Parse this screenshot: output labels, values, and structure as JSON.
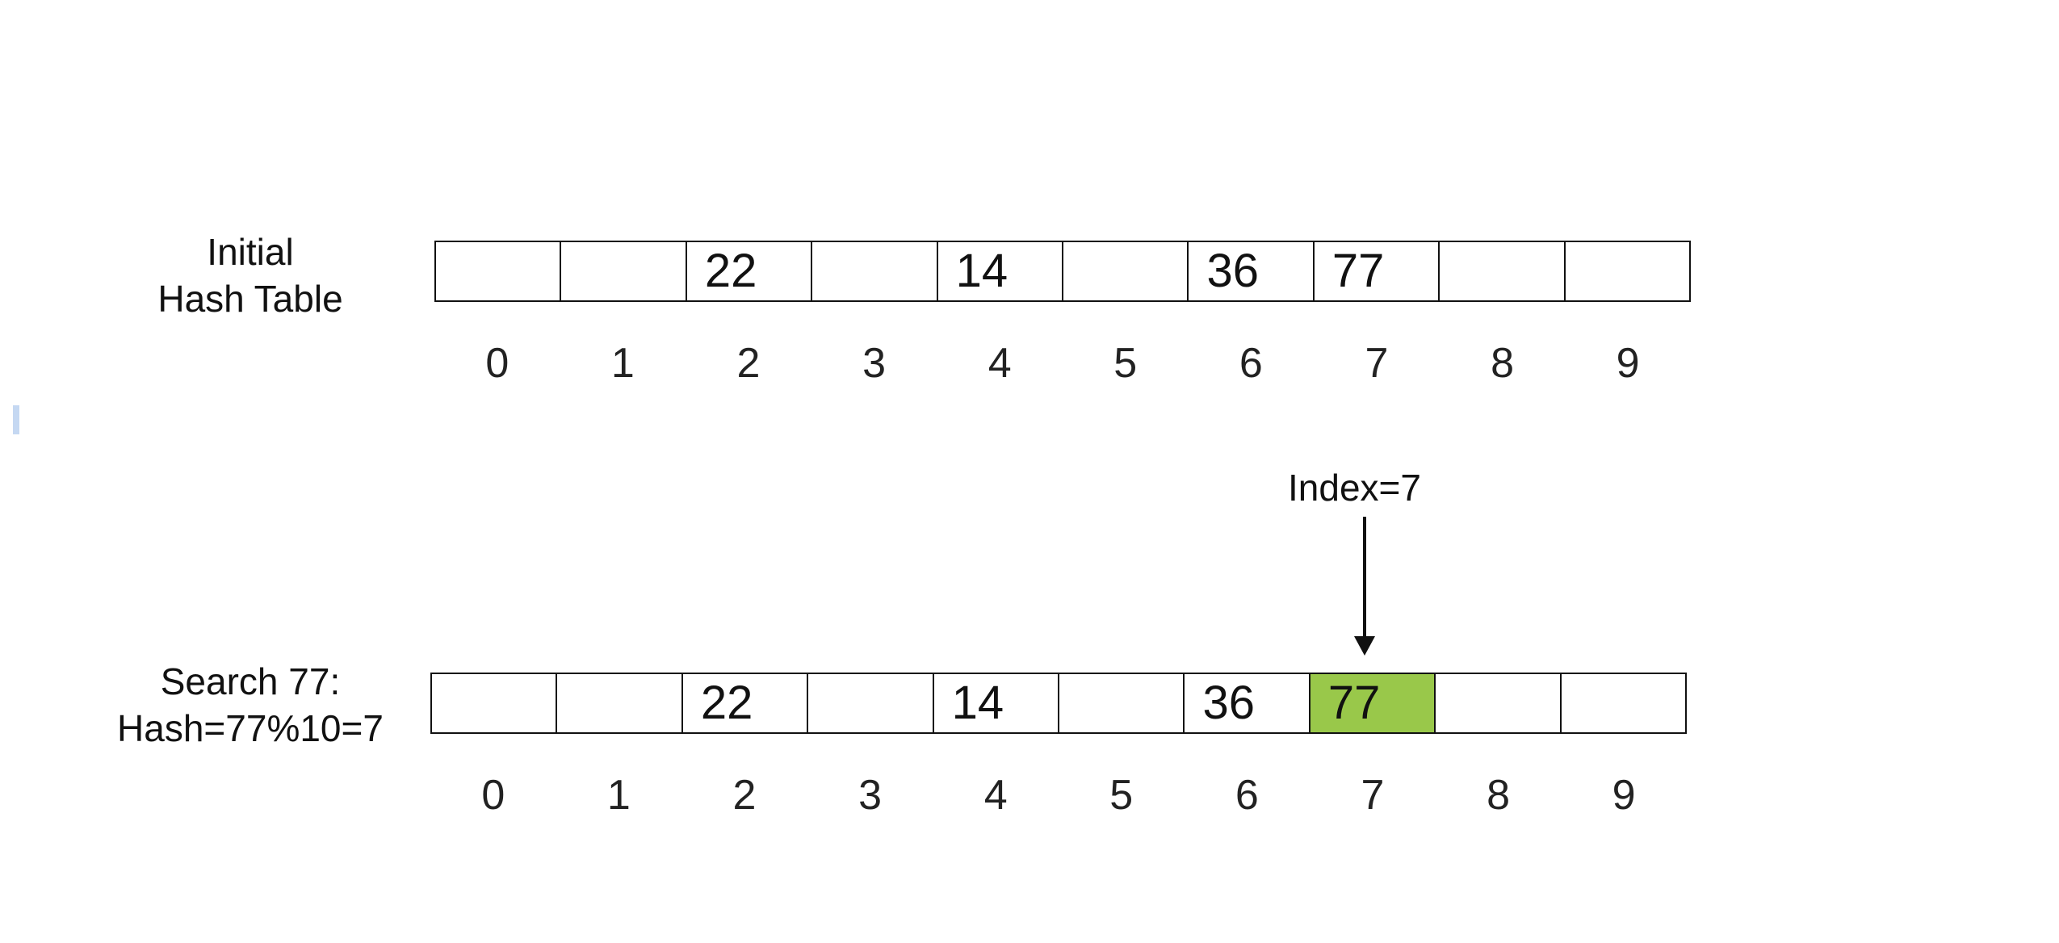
{
  "diagram": {
    "initial": {
      "label_lines": [
        "Initial",
        "Hash Table"
      ],
      "cells": [
        "",
        "",
        "22",
        "",
        "14",
        "",
        "36",
        "77",
        "",
        ""
      ],
      "indices": [
        "0",
        "1",
        "2",
        "3",
        "4",
        "5",
        "6",
        "7",
        "8",
        "9"
      ]
    },
    "search": {
      "label_lines": [
        "Search 77:",
        "Hash=77%10=7"
      ],
      "cells": [
        "",
        "",
        "22",
        "",
        "14",
        "",
        "36",
        "77",
        "",
        ""
      ],
      "indices": [
        "0",
        "1",
        "2",
        "3",
        "4",
        "5",
        "6",
        "7",
        "8",
        "9"
      ],
      "highlighted_index": 7,
      "highlight_color": "#99c84a",
      "pointer_label": "Index=7"
    }
  }
}
